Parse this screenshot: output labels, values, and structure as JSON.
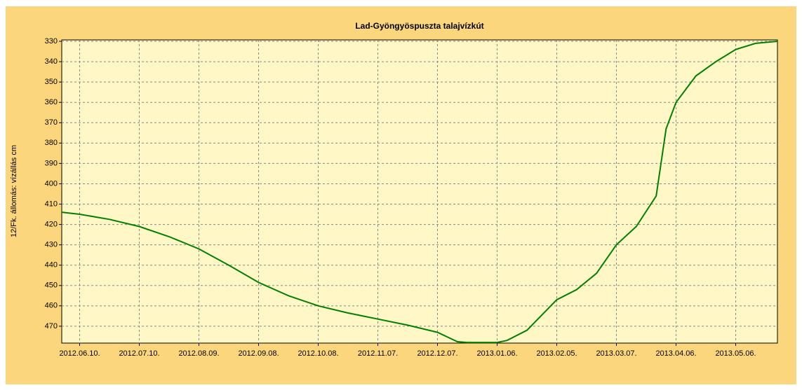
{
  "chart_data": {
    "type": "line",
    "title": "Lad-Gyöngyöspuszta talajvízkút",
    "y_label": "12/Fk. állomás: vízállás cm",
    "color": "#008000",
    "y_inverted": true,
    "grid": true,
    "x": [
      "2012-06-01",
      "2012-06-10",
      "2012-06-25",
      "2012-07-10",
      "2012-07-25",
      "2012-08-09",
      "2012-08-24",
      "2012-09-08",
      "2012-09-23",
      "2012-10-08",
      "2012-10-23",
      "2012-11-07",
      "2012-11-22",
      "2012-12-07",
      "2012-12-17",
      "2012-12-22",
      "2013-01-06",
      "2013-01-11",
      "2013-01-21",
      "2013-02-05",
      "2013-02-15",
      "2013-02-25",
      "2013-03-07",
      "2013-03-17",
      "2013-03-27",
      "2013-04-01",
      "2013-04-06",
      "2013-04-16",
      "2013-04-26",
      "2013-05-06",
      "2013-05-16",
      "2013-05-27"
    ],
    "values": [
      414,
      415,
      417.5,
      421,
      426,
      432,
      440,
      448.5,
      455,
      460,
      463.5,
      466.5,
      469.5,
      473,
      477.6,
      478,
      478,
      477,
      472,
      457,
      452,
      444,
      430,
      421,
      406,
      373,
      360,
      347,
      340,
      334,
      331,
      330
    ],
    "xlim": [
      "2012-06-01",
      "2013-05-27"
    ],
    "xticks": [
      {
        "value": "2012-06-10",
        "label": "2012.06.10."
      },
      {
        "value": "2012-07-10",
        "label": "2012.07.10."
      },
      {
        "value": "2012-08-09",
        "label": "2012.08.09."
      },
      {
        "value": "2012-09-08",
        "label": "2012.09.08."
      },
      {
        "value": "2012-10-08",
        "label": "2012.10.08."
      },
      {
        "value": "2012-11-07",
        "label": "2012.11.07."
      },
      {
        "value": "2012-12-07",
        "label": "2012.12.07."
      },
      {
        "value": "2013-01-06",
        "label": "2013.01.06."
      },
      {
        "value": "2013-02-05",
        "label": "2013.02.05."
      },
      {
        "value": "2013-03-07",
        "label": "2013.03.07."
      },
      {
        "value": "2013-04-06",
        "label": "2013.04.06."
      },
      {
        "value": "2013-05-06",
        "label": "2013.05.06."
      }
    ],
    "ylim": [
      329.3,
      478.3
    ],
    "yticks": [
      330,
      340,
      350,
      360,
      370,
      380,
      390,
      400,
      410,
      420,
      430,
      440,
      450,
      460,
      470
    ]
  }
}
